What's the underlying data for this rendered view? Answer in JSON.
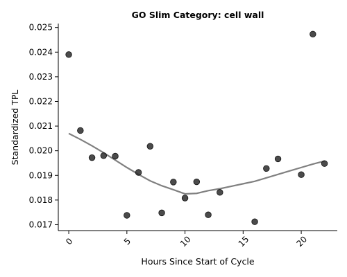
{
  "chart_data": {
    "type": "scatter",
    "title": "GO Slim Category: cell wall",
    "xlabel": "Hours Since Start of Cycle",
    "ylabel": "Standardized TPL",
    "xlim": [
      -0.9,
      23.1
    ],
    "ylim": [
      0.01676,
      0.02516
    ],
    "xticks": [
      0,
      5,
      10,
      15,
      20
    ],
    "yticks": [
      0.017,
      0.018,
      0.019,
      0.02,
      0.021,
      0.022,
      0.023,
      0.024,
      0.025
    ],
    "ytick_labels": [
      "0.017",
      "0.018",
      "0.019",
      "0.020",
      "0.021",
      "0.022",
      "0.023",
      "0.024",
      "0.025"
    ],
    "grid": false,
    "series": [
      {
        "kind": "points",
        "color": "#2b2b2b",
        "x": [
          0,
          1,
          2,
          3,
          4,
          5,
          6,
          7,
          8,
          9,
          10,
          11,
          12,
          13,
          16,
          17,
          18,
          20,
          21,
          22
        ],
        "y": [
          0.0239,
          0.02082,
          0.01972,
          0.0198,
          0.01978,
          0.01738,
          0.01912,
          0.02018,
          0.01748,
          0.01873,
          0.01808,
          0.01874,
          0.0174,
          0.01831,
          0.01712,
          0.01928,
          0.01967,
          0.01903,
          0.02473,
          0.01948
        ]
      },
      {
        "kind": "trend",
        "color": "#808080",
        "x": [
          0,
          1,
          2,
          3,
          4,
          5,
          6,
          7,
          8,
          9,
          10,
          11,
          12,
          13,
          14,
          15,
          16,
          17,
          18,
          19,
          20,
          21,
          22
        ],
        "y": [
          0.0207,
          0.02046,
          0.0202,
          0.01992,
          0.01962,
          0.01932,
          0.01904,
          0.01878,
          0.01858,
          0.01842,
          0.01825,
          0.01827,
          0.01838,
          0.01846,
          0.01856,
          0.01866,
          0.01876,
          0.0189,
          0.01904,
          0.01918,
          0.01932,
          0.01946,
          0.01958
        ]
      }
    ]
  }
}
